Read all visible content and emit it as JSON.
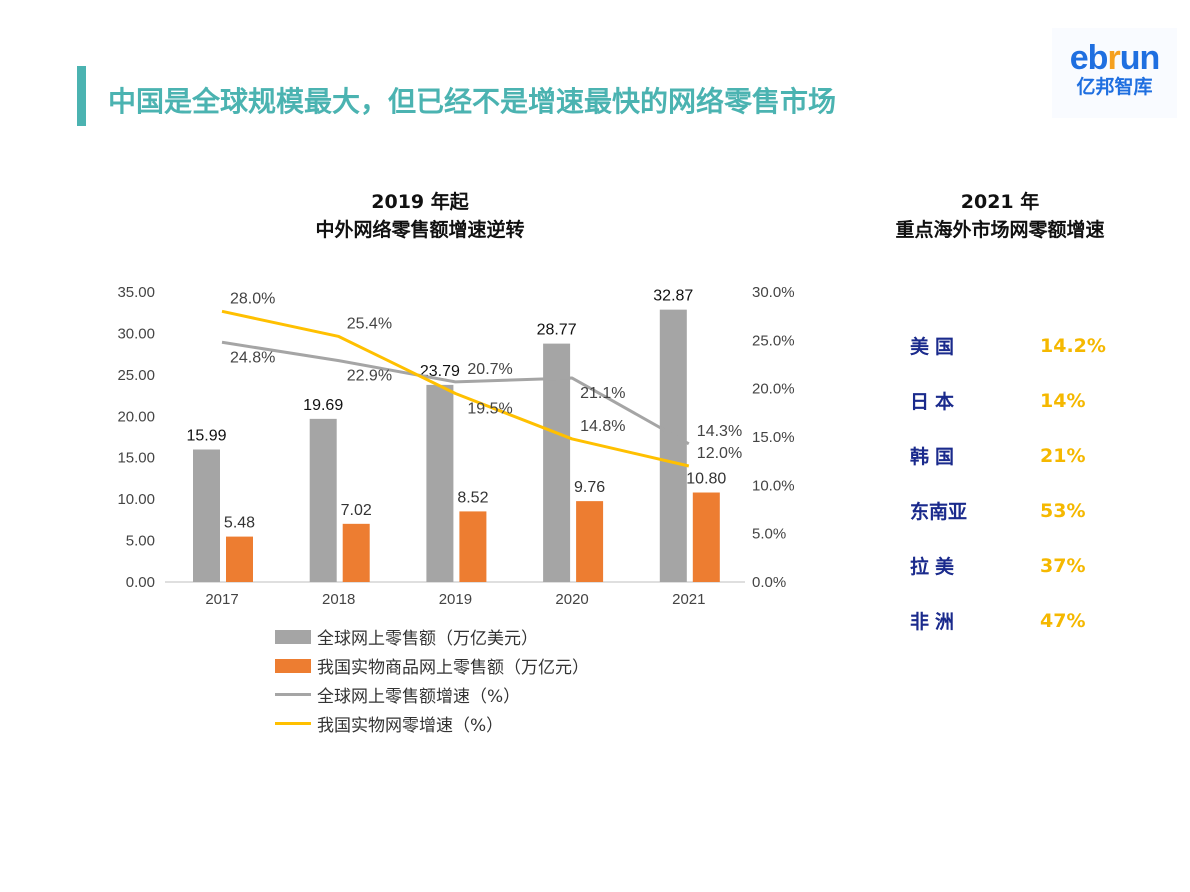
{
  "header": {
    "title": "中国是全球规模最大，但已经不是增速最快的网络零售市场"
  },
  "logo": {
    "en_a": "eb",
    "en_r": "r",
    "en_b": "un",
    "cn": "亿邦智库"
  },
  "left_chart_title": {
    "line1": "2019 年起",
    "line2": "中外网络零售额增速逆转"
  },
  "right_panel": {
    "line1": "2021 年",
    "line2": "重点海外市场网零额增速",
    "items": [
      {
        "country": "美国",
        "value": "14.2%"
      },
      {
        "country": "日本",
        "value": "14%"
      },
      {
        "country": "韩国",
        "value": "21%"
      },
      {
        "country": "东南亚",
        "value": "53%"
      },
      {
        "country": "拉美",
        "value": "37%"
      },
      {
        "country": "非洲",
        "value": "47%"
      }
    ]
  },
  "chart_data": {
    "type": "bar+line",
    "categories": [
      "2017",
      "2018",
      "2019",
      "2020",
      "2021"
    ],
    "ylim": [
      0,
      35
    ],
    "y_ticks": [
      "0.00",
      "5.00",
      "10.00",
      "15.00",
      "20.00",
      "25.00",
      "30.00",
      "35.00"
    ],
    "y2lim": [
      0,
      30
    ],
    "y2_ticks": [
      "0.0%",
      "5.0%",
      "10.0%",
      "15.0%",
      "20.0%",
      "25.0%",
      "30.0%"
    ],
    "series": [
      {
        "name": "全球网上零售额（万亿美元）",
        "type": "bar",
        "axis": "left",
        "color": "#a5a5a5",
        "values": [
          15.99,
          19.69,
          23.79,
          28.77,
          32.87
        ],
        "labels": [
          "15.99",
          "19.69",
          "23.79",
          "28.77",
          "32.87"
        ]
      },
      {
        "name": "我国实物商品网上零售额（万亿元）",
        "type": "bar",
        "axis": "left",
        "color": "#ed7d31",
        "values": [
          5.48,
          7.02,
          8.52,
          9.76,
          10.8
        ],
        "labels": [
          "5.48",
          "7.02",
          "8.52",
          "9.76",
          "10.80"
        ]
      },
      {
        "name": "全球网上零售额增速（%）",
        "type": "line",
        "axis": "right",
        "color": "#a5a5a5",
        "values": [
          24.8,
          22.9,
          20.7,
          21.1,
          14.3
        ],
        "labels": [
          "24.8%",
          "22.9%",
          "20.7%",
          "21.1%",
          "14.3%"
        ]
      },
      {
        "name": "我国实物网零增速（%）",
        "type": "line",
        "axis": "right",
        "color": "#ffc000",
        "values": [
          28.0,
          25.4,
          19.5,
          14.8,
          12.0
        ],
        "labels": [
          "28.0%",
          "25.4%",
          "19.5%",
          "14.8%",
          "12.0%"
        ]
      }
    ],
    "legend_position": "bottom",
    "grid": false
  }
}
